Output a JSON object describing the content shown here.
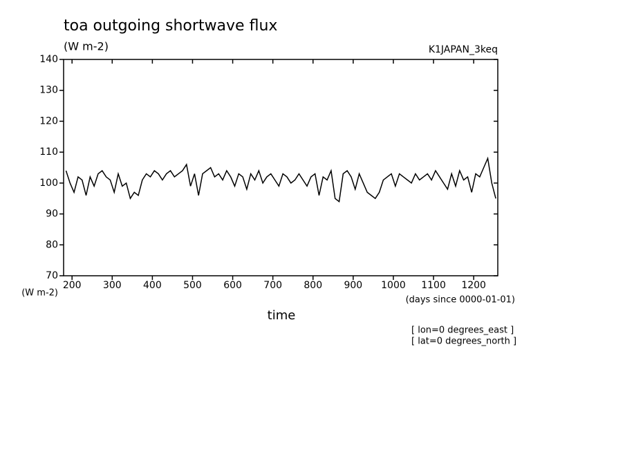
{
  "chart_data": {
    "type": "line",
    "title": "toa outgoing shortwave flux",
    "subtitle": "(W m-2)",
    "annotation": "K1JAPAN_3keq",
    "y_label": "(W m-2)",
    "x_unit": "(days since 0000-01-01)",
    "x_label": "time",
    "notes": [
      "[ lon=0 degrees_east ]",
      "[ lat=0 degrees_north ]"
    ],
    "color": "#000000",
    "x": [
      185,
      195,
      205,
      215,
      225,
      235,
      245,
      255,
      265,
      275,
      285,
      295,
      305,
      315,
      325,
      335,
      345,
      355,
      365,
      375,
      385,
      395,
      405,
      415,
      425,
      435,
      445,
      455,
      465,
      475,
      485,
      495,
      505,
      515,
      525,
      535,
      545,
      555,
      565,
      575,
      585,
      595,
      605,
      615,
      625,
      635,
      645,
      655,
      665,
      675,
      685,
      695,
      705,
      715,
      725,
      735,
      745,
      755,
      765,
      775,
      785,
      795,
      805,
      815,
      825,
      835,
      845,
      855,
      865,
      875,
      885,
      895,
      905,
      915,
      925,
      935,
      945,
      955,
      965,
      975,
      985,
      995,
      1005,
      1015,
      1025,
      1035,
      1045,
      1055,
      1065,
      1075,
      1085,
      1095,
      1105,
      1115,
      1125,
      1135,
      1145,
      1155,
      1165,
      1175,
      1185,
      1195,
      1205,
      1215,
      1225,
      1235,
      1245,
      1255
    ],
    "values": [
      104,
      100,
      97,
      102,
      101,
      96,
      102,
      99,
      103,
      104,
      102,
      101,
      97,
      103,
      99,
      100,
      95,
      97,
      96,
      101,
      103,
      102,
      104,
      103,
      101,
      103,
      104,
      102,
      103,
      104,
      106,
      99,
      103,
      96,
      103,
      104,
      105,
      102,
      103,
      101,
      104,
      102,
      99,
      103,
      102,
      98,
      103,
      101,
      104,
      100,
      102,
      103,
      101,
      99,
      103,
      102,
      100,
      101,
      103,
      101,
      99,
      102,
      103,
      96,
      102,
      101,
      104,
      95,
      94,
      103,
      104,
      102,
      98,
      103,
      100,
      97,
      96,
      95,
      97,
      101,
      102,
      103,
      99,
      103,
      102,
      101,
      100,
      103,
      101,
      102,
      103,
      101,
      104,
      102,
      100,
      98,
      103,
      99,
      104,
      101,
      102,
      97,
      103,
      102,
      105,
      108,
      100,
      95
    ],
    "xlim": [
      179,
      1260
    ],
    "ylim": [
      70,
      140
    ],
    "xticks": [
      200,
      300,
      400,
      500,
      600,
      700,
      800,
      900,
      1000,
      1100,
      1200
    ],
    "yticks": [
      70,
      80,
      90,
      100,
      110,
      120,
      130,
      140
    ]
  }
}
